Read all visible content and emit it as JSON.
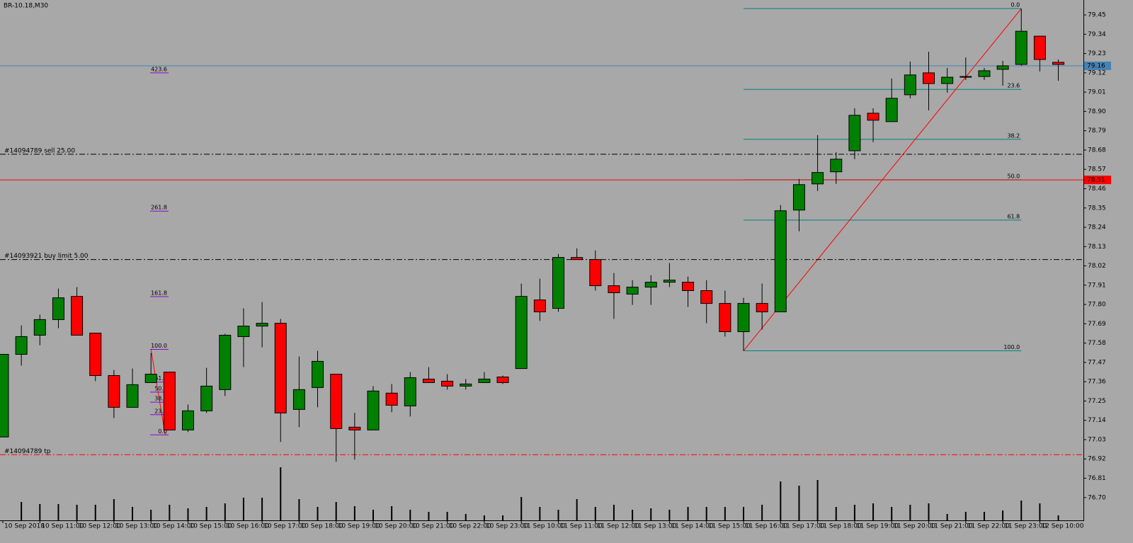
{
  "chart_data": {
    "type": "candlestick",
    "title": "BR-10.18,M30",
    "categories": [
      "10 Sep 2018",
      null,
      "10 Sep 11:00",
      null,
      "10 Sep 12:00",
      null,
      "10 Sep 13:00",
      null,
      "10 Sep 14:00",
      null,
      "10 Sep 15:00",
      null,
      "10 Sep 16:00",
      null,
      "10 Sep 17:00",
      null,
      "10 Sep 18:00",
      null,
      "10 Sep 19:00",
      null,
      "10 Sep 20:00",
      null,
      "10 Sep 21:00",
      null,
      "10 Sep 22:00",
      null,
      "10 Sep 23:00",
      null,
      "11 Sep 10:00",
      null,
      "11 Sep 11:00",
      null,
      "11 Sep 12:00",
      null,
      "11 Sep 13:00",
      null,
      "11 Sep 14:00",
      null,
      "11 Sep 15:00",
      null,
      "11 Sep 16:00",
      null,
      "11 Sep 17:00",
      null,
      "11 Sep 18:00",
      null,
      "11 Sep 19:00",
      null,
      "11 Sep 20:00",
      null,
      "11 Sep 21:00",
      null,
      "11 Sep 22:00",
      null,
      "11 Sep 23:00",
      null,
      "12 Sep 10:00",
      null
    ],
    "open": [
      77.045,
      77.516,
      77.625,
      77.714,
      77.846,
      77.637,
      77.395,
      77.214,
      77.355,
      77.415,
      77.085,
      77.194,
      77.315,
      77.617,
      77.677,
      77.693,
      77.202,
      77.327,
      77.403,
      77.101,
      77.085,
      77.295,
      77.222,
      77.375,
      77.363,
      77.335,
      77.355,
      77.387,
      77.435,
      77.826,
      77.778,
      78.068,
      78.056,
      77.907,
      77.859,
      77.899,
      77.927,
      77.927,
      77.879,
      77.806,
      77.645,
      77.806,
      77.758,
      78.338,
      78.487,
      78.556,
      78.676,
      78.89,
      78.842,
      78.995,
      79.12,
      79.059,
      79.095,
      79.099,
      79.14,
      79.168,
      79.329,
      79.18
    ],
    "high": [
      77.516,
      77.681,
      77.742,
      77.891,
      77.899,
      77.637,
      77.427,
      77.435,
      77.524,
      77.415,
      77.23,
      77.439,
      77.633,
      77.778,
      77.814,
      77.718,
      77.504,
      77.536,
      77.403,
      77.182,
      77.335,
      77.347,
      77.415,
      77.443,
      77.403,
      77.375,
      77.415,
      77.395,
      77.919,
      77.947,
      78.088,
      78.12,
      78.108,
      77.979,
      77.939,
      77.967,
      78.036,
      77.959,
      77.939,
      77.879,
      77.838,
      77.919,
      78.366,
      78.515,
      78.765,
      78.668,
      78.918,
      78.918,
      79.087,
      79.184,
      79.24,
      79.148,
      79.208,
      79.148,
      79.188,
      79.486,
      79.329,
      79.196
    ],
    "low": [
      77.045,
      77.452,
      77.568,
      77.665,
      77.625,
      77.363,
      77.153,
      77.214,
      77.355,
      77.085,
      77.073,
      77.182,
      77.278,
      77.443,
      77.556,
      77.017,
      77.101,
      77.214,
      76.904,
      76.916,
      77.085,
      77.186,
      77.162,
      77.355,
      77.315,
      77.315,
      77.355,
      77.347,
      77.435,
      77.706,
      77.758,
      78.056,
      77.879,
      77.718,
      77.798,
      77.798,
      77.899,
      77.786,
      77.693,
      77.617,
      77.536,
      77.657,
      77.758,
      78.217,
      78.447,
      78.487,
      78.628,
      78.725,
      78.842,
      78.975,
      78.906,
      79.007,
      79.079,
      79.079,
      79.047,
      79.16,
      79.128,
      79.075
    ],
    "close": [
      77.516,
      77.617,
      77.714,
      77.838,
      77.625,
      77.395,
      77.214,
      77.343,
      77.403,
      77.085,
      77.194,
      77.335,
      77.625,
      77.677,
      77.693,
      77.182,
      77.315,
      77.476,
      77.093,
      77.085,
      77.307,
      77.226,
      77.383,
      77.355,
      77.335,
      77.347,
      77.375,
      77.355,
      77.846,
      77.758,
      78.068,
      78.056,
      77.907,
      77.867,
      77.899,
      77.927,
      77.939,
      77.879,
      77.806,
      77.645,
      77.806,
      77.758,
      78.334,
      78.483,
      78.552,
      78.628,
      78.878,
      78.85,
      78.975,
      79.108,
      79.059,
      79.095,
      79.099,
      79.132,
      79.16,
      79.357,
      79.196,
      79.168
    ],
    "volume": [
      0,
      26,
      23,
      23,
      22,
      22,
      30,
      19,
      15,
      22,
      17,
      19,
      24,
      32,
      32,
      75,
      30,
      19,
      26,
      20,
      15,
      20,
      15,
      12,
      12,
      9,
      7,
      7,
      33,
      19,
      15,
      30,
      19,
      22,
      15,
      17,
      15,
      19,
      19,
      19,
      19,
      22,
      55,
      49,
      57,
      19,
      22,
      24,
      19,
      22,
      24,
      9,
      12,
      12,
      14,
      28,
      24,
      7
    ],
    "vlim": [
      0,
      100
    ],
    "up_color": "#008000",
    "down_color": "#ff0000",
    "ylim": [
      76.57,
      79.535
    ],
    "yticks": [
      79.45,
      79.34,
      79.23,
      79.12,
      79.01,
      {
        "value": 78.9,
        "label": "78.90"
      },
      78.79,
      78.68,
      78.57,
      78.46,
      78.35,
      78.24,
      78.13,
      78.02,
      77.91,
      {
        "value": 77.8,
        "label": "77.80"
      },
      77.69,
      77.58,
      77.47,
      77.36,
      77.25,
      77.14,
      77.03,
      76.92,
      76.81,
      {
        "value": 76.7,
        "label": "76.70"
      }
    ],
    "order_lines": [
      {
        "label": "#14094789 sell 25.00",
        "value": 78.656,
        "color": "#000000"
      },
      {
        "label": "#14093921 buy limit 5.00",
        "value": 78.056,
        "color": "#000000"
      },
      {
        "label": "#14094789 tp",
        "value": 76.944,
        "color": "#ff0000"
      }
    ],
    "price_lines": [
      {
        "value": 78.51,
        "color": "#ff0000"
      },
      {
        "value": 79.16,
        "color": "#4682b4"
      }
    ],
    "fib_retracement": {
      "low": 77.536,
      "high": 79.486,
      "color": "#008080",
      "levels": [
        {
          "value": 0,
          "label": "0.0"
        },
        23.6,
        38.2,
        {
          "value": 50,
          "label": "50.0"
        },
        61.8,
        {
          "value": 100,
          "label": "100.0"
        }
      ]
    },
    "fib_expansion": {
      "base": 77.057,
      "top": 77.544,
      "color": "#9400d3",
      "levels": [
        423.6,
        261.8,
        161.8,
        {
          "value": 100,
          "label": "100.0"
        },
        61.8,
        {
          "value": 50,
          "label": "50.0"
        },
        38.2,
        23.6,
        {
          "value": 0,
          "label": "0.0"
        }
      ]
    }
  }
}
